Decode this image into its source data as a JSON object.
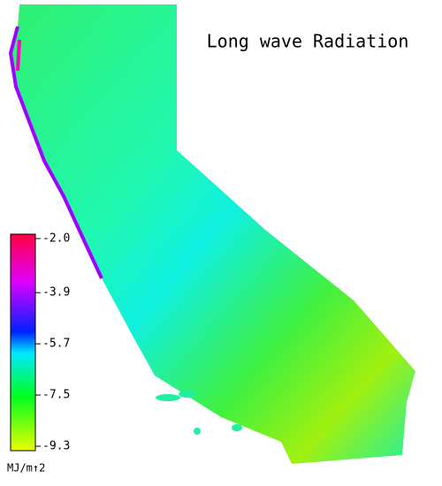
{
  "map": {
    "title": "Long wave Radiation",
    "colorbar": {
      "clim": [
        -9.3,
        -2.0
      ],
      "ticks": [
        {
          "value": -2.0,
          "label": "-2.0"
        },
        {
          "value": -3.9,
          "label": "-3.9"
        },
        {
          "value": -5.7,
          "label": "-5.7"
        },
        {
          "value": -7.5,
          "label": "-7.5"
        },
        {
          "value": -9.3,
          "label": "-9.3"
        }
      ],
      "unit": "MJ/m↑2"
    }
  }
}
